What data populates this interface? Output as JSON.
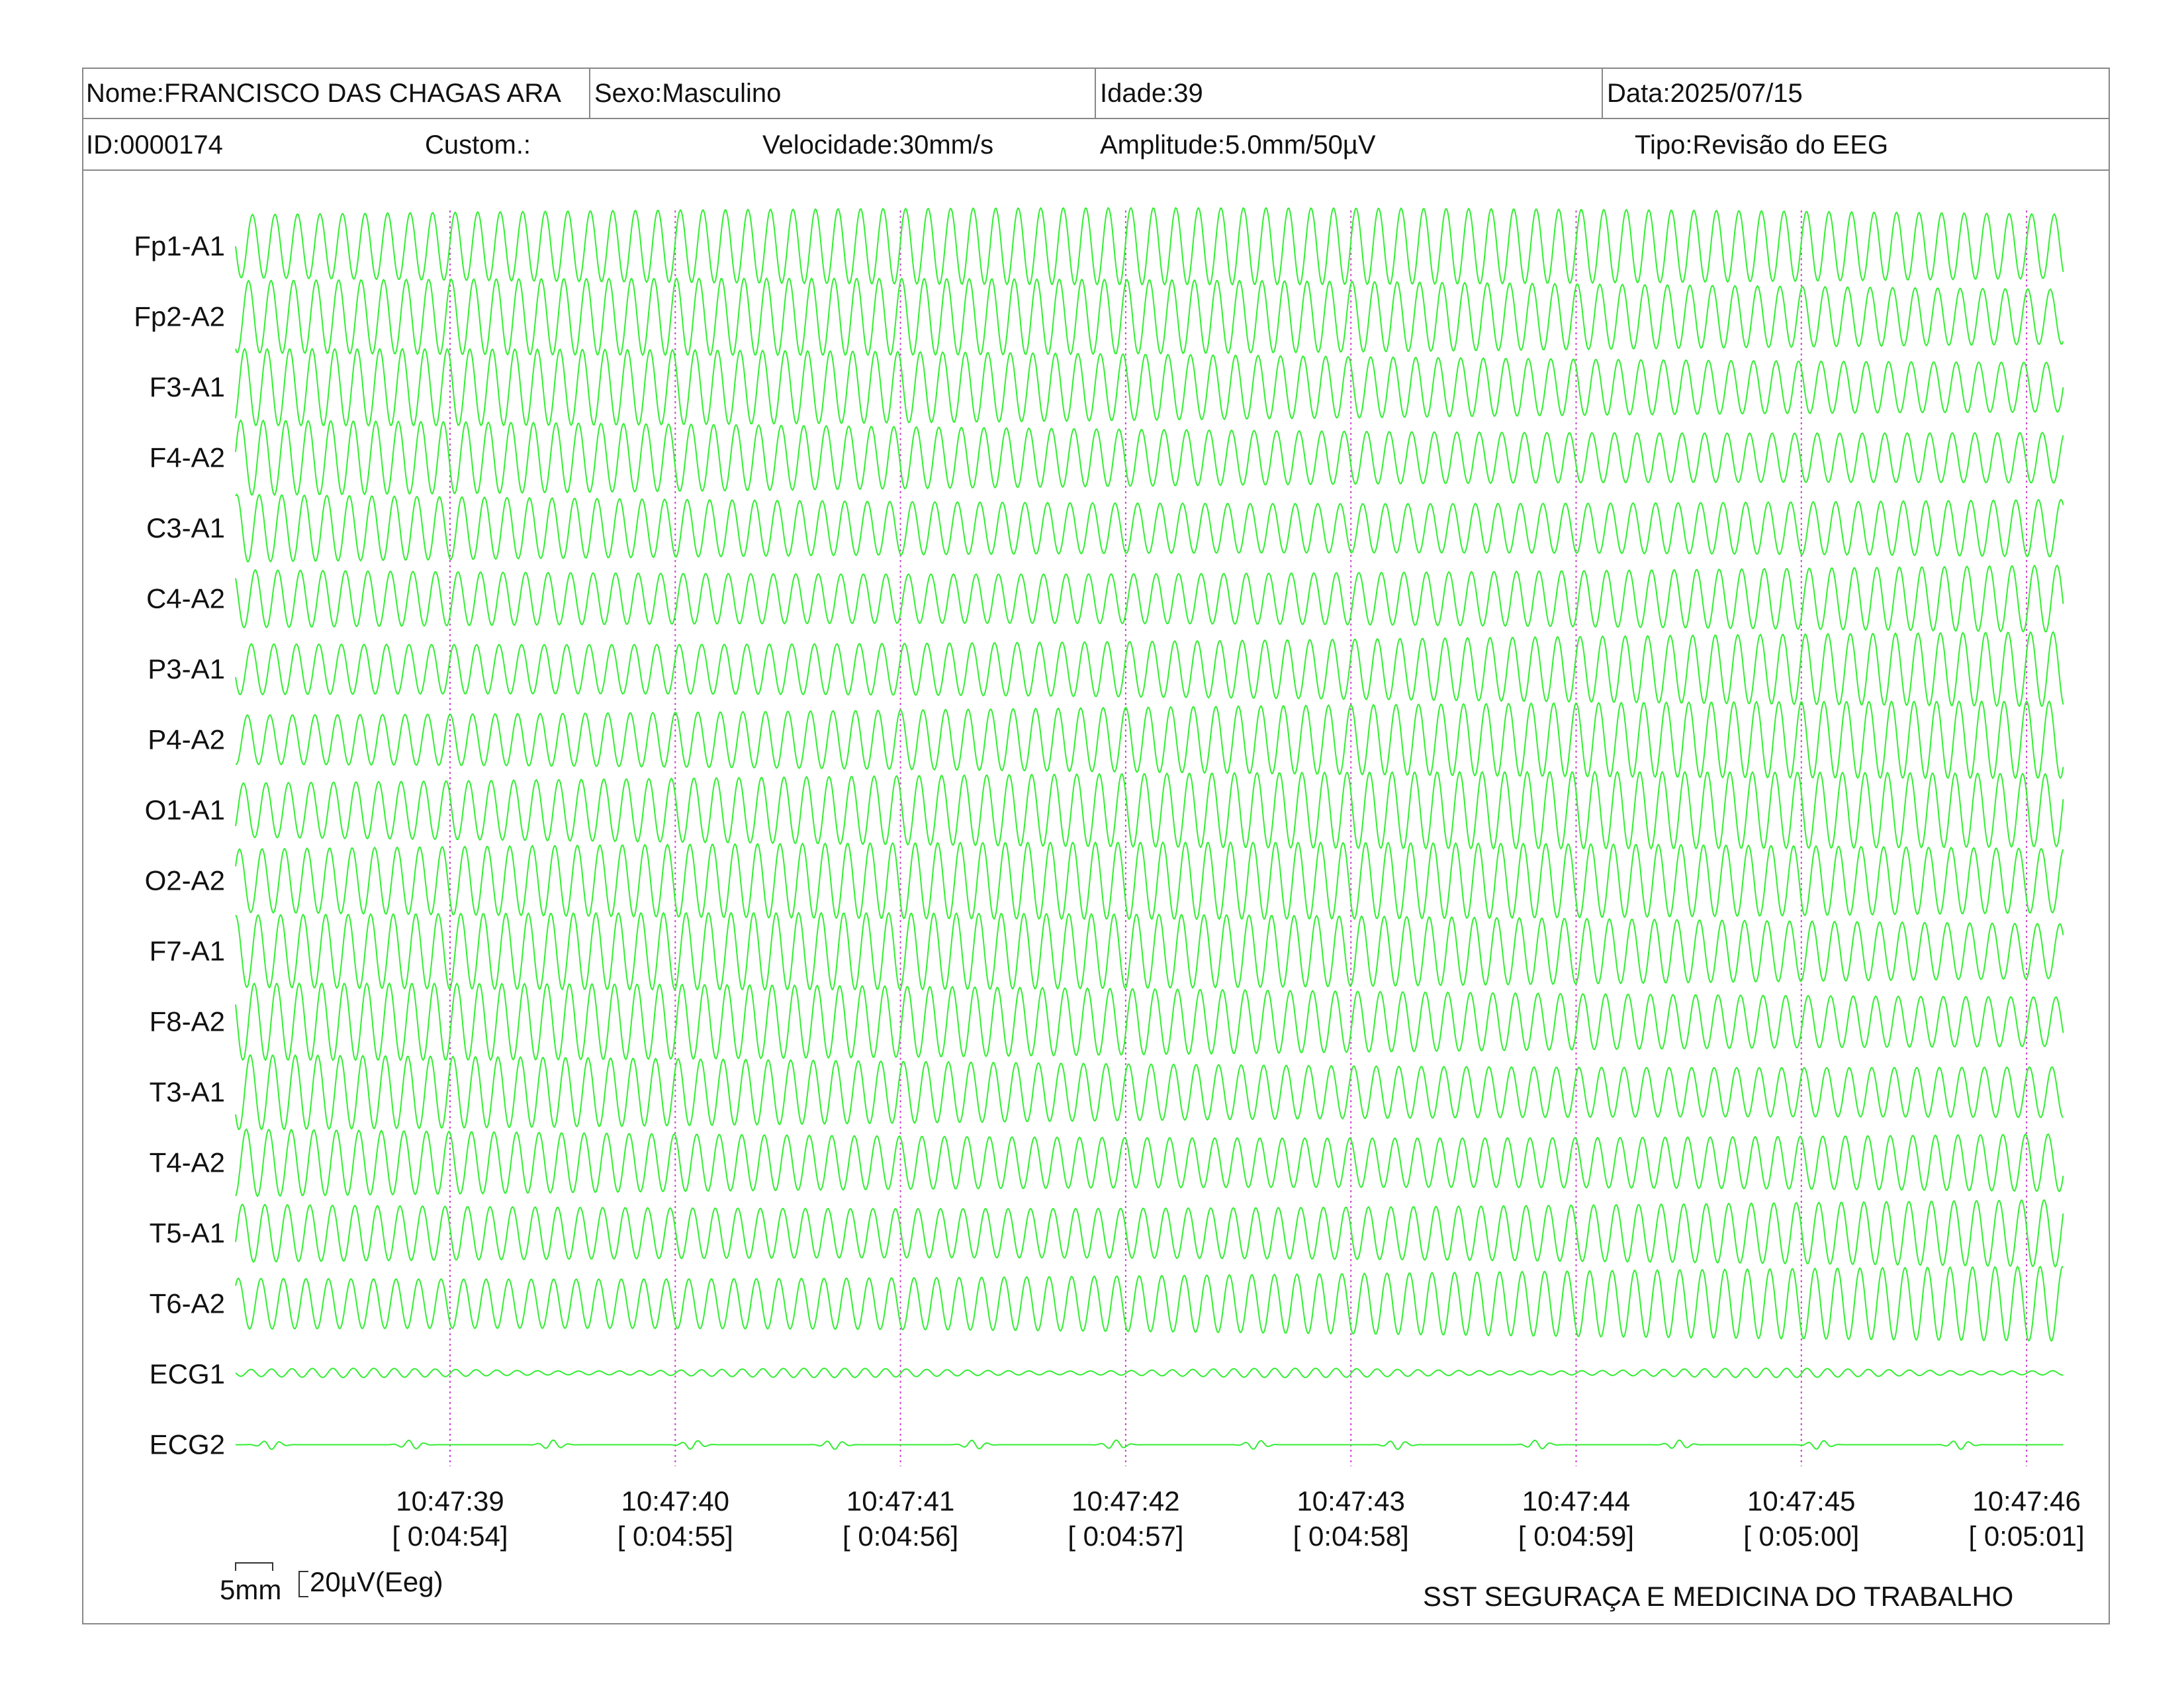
{
  "header": {
    "nome": "Nome:FRANCISCO DAS CHAGAS ARA",
    "sexo": "Sexo:Masculino",
    "idade": "Idade:39",
    "data": "Data:2025/07/15",
    "id": "ID:0000174",
    "custom": "Custom.:",
    "velocidade": "Velocidade:30mm/s",
    "amplitude": "Amplitude:5.0mm/50µV",
    "tipo": "Tipo:Revisão do EEG"
  },
  "colors": {
    "trace": "#33ee33",
    "marker": "#cc44cc",
    "border": "#888888"
  },
  "chart_data": {
    "type": "line",
    "channels": [
      "Fp1-A1",
      "Fp2-A2",
      "F3-A1",
      "F4-A2",
      "C3-A1",
      "C4-A2",
      "P3-A1",
      "P4-A2",
      "O1-A1",
      "O2-A2",
      "F7-A1",
      "F8-A2",
      "T3-A1",
      "T4-A2",
      "T5-A1",
      "T6-A2",
      "ECG1",
      "ECG2"
    ],
    "time_labels": [
      "10:47:39",
      "10:47:40",
      "10:47:41",
      "10:47:42",
      "10:47:43",
      "10:47:44",
      "10:47:45",
      "10:47:46"
    ],
    "elapsed_labels": [
      "[ 0:04:54]",
      "[ 0:04:55]",
      "[ 0:04:56]",
      "[ 0:04:57]",
      "[ 0:04:58]",
      "[ 0:04:59]",
      "[ 0:05:00]",
      "[ 0:05:01]"
    ],
    "oscillation_hz": 10,
    "speed_mm_s": 30,
    "grid": false
  },
  "scale": {
    "time_label": "5mm",
    "amp_label": "20µV(Eeg)"
  },
  "footer": {
    "org": "SST SEGURAÇA E MEDICINA DO TRABALHO"
  }
}
